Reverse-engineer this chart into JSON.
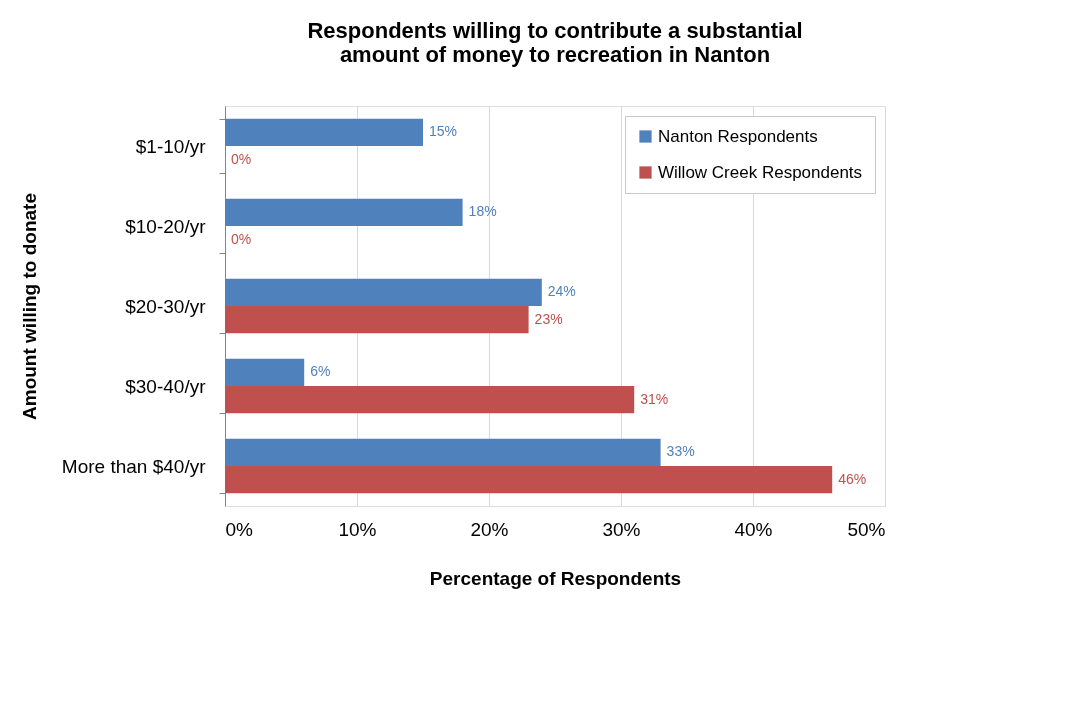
{
  "chart_data": {
    "type": "bar",
    "orientation": "horizontal",
    "title": "Respondents willing to contribute a substantial amount of money to recreation in Nanton",
    "xlabel": "Percentage of Respondents",
    "ylabel": "Amount willing to donate",
    "categories": [
      "$1-10/yr",
      "$10-20/yr",
      "$20-30/yr",
      "$30-40/yr",
      "More than $40/yr"
    ],
    "series": [
      {
        "name": "Nanton Respondents",
        "color": "#4f81bd",
        "values": [
          15,
          18,
          24,
          6,
          33
        ],
        "value_labels": [
          "15%",
          "18%",
          "24%",
          "6%",
          "33%"
        ]
      },
      {
        "name": "Willow Creek Respondents",
        "color": "#c0504d",
        "values": [
          0,
          0,
          23,
          31,
          46
        ],
        "value_labels": [
          "0%",
          "0%",
          "23%",
          "31%",
          "46%"
        ]
      }
    ],
    "xlim": [
      0,
      50
    ],
    "xticks": [
      {
        "value": 0,
        "label": "0%"
      },
      {
        "value": 10,
        "label": "10%"
      },
      {
        "value": 20,
        "label": "20%"
      },
      {
        "value": 30,
        "label": "30%"
      },
      {
        "value": 40,
        "label": "40%"
      },
      {
        "value": 50,
        "label": "50%"
      }
    ],
    "grid": "x",
    "legend": "top right"
  }
}
